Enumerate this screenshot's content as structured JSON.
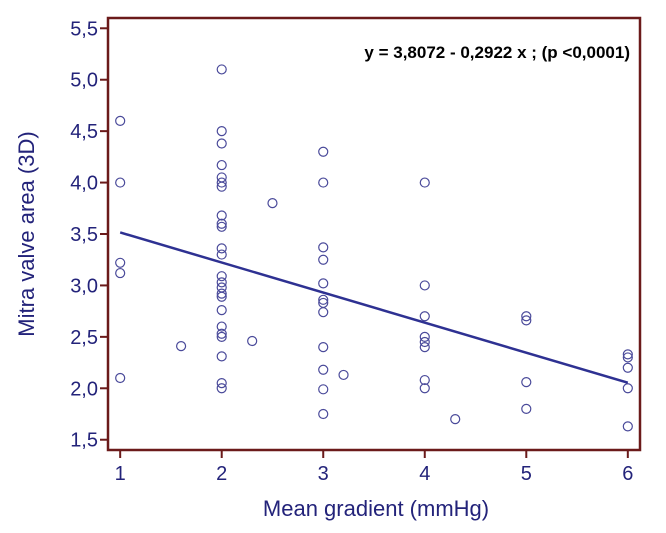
{
  "chart_data": {
    "type": "scatter",
    "xlabel": "Mean gradient (mmHg)",
    "ylabel": "Mitra valve area (3D)",
    "xlim": [
      0.88,
      6.12
    ],
    "ylim": [
      1.4,
      5.6
    ],
    "x_ticks": [
      1,
      2,
      3,
      4,
      5,
      6
    ],
    "x_tick_labels": [
      "1",
      "2",
      "3",
      "4",
      "5",
      "6"
    ],
    "y_ticks": [
      1.5,
      2.0,
      2.5,
      3.0,
      3.5,
      4.0,
      4.5,
      5.0,
      5.5
    ],
    "y_tick_labels": [
      "1,5",
      "2,0",
      "2,5",
      "3,0",
      "3,5",
      "4,0",
      "4,5",
      "5,0",
      "5,5"
    ],
    "annotation": "y = 3,8072 - 0,2922 x ; (p <0,0001)",
    "grid": false,
    "colors": {
      "frame": "#6b1a1a",
      "points": "#4a4a9a",
      "line": "#2e3192",
      "text": "#23237a"
    },
    "series": [
      {
        "points": [
          [
            1,
            4.6
          ],
          [
            1,
            4.0
          ],
          [
            1,
            3.22
          ],
          [
            1,
            3.12
          ],
          [
            1,
            2.1
          ],
          [
            1.6,
            2.41
          ],
          [
            2,
            5.1
          ],
          [
            2,
            4.5
          ],
          [
            2,
            4.38
          ],
          [
            2,
            4.17
          ],
          [
            2,
            4.05
          ],
          [
            2,
            4.0
          ],
          [
            2,
            3.96
          ],
          [
            2,
            3.68
          ],
          [
            2,
            3.6
          ],
          [
            2,
            3.57
          ],
          [
            2,
            3.36
          ],
          [
            2,
            3.3
          ],
          [
            2,
            3.09
          ],
          [
            2,
            3.03
          ],
          [
            2,
            2.98
          ],
          [
            2,
            2.92
          ],
          [
            2,
            2.89
          ],
          [
            2,
            2.76
          ],
          [
            2,
            2.6
          ],
          [
            2,
            2.53
          ],
          [
            2,
            2.5
          ],
          [
            2,
            2.31
          ],
          [
            2,
            2.05
          ],
          [
            2,
            2.0
          ],
          [
            2.3,
            2.46
          ],
          [
            2.5,
            3.8
          ],
          [
            3,
            4.3
          ],
          [
            3,
            4.0
          ],
          [
            3,
            3.37
          ],
          [
            3,
            3.25
          ],
          [
            3,
            3.02
          ],
          [
            3,
            2.86
          ],
          [
            3,
            2.83
          ],
          [
            3,
            2.74
          ],
          [
            3,
            2.4
          ],
          [
            3,
            2.18
          ],
          [
            3,
            1.99
          ],
          [
            3,
            1.75
          ],
          [
            3.2,
            2.13
          ],
          [
            4,
            4.0
          ],
          [
            4,
            3.0
          ],
          [
            4,
            2.7
          ],
          [
            4,
            2.5
          ],
          [
            4,
            2.45
          ],
          [
            4,
            2.4
          ],
          [
            4,
            2.08
          ],
          [
            4,
            2.0
          ],
          [
            4.3,
            1.7
          ],
          [
            5,
            2.7
          ],
          [
            5,
            2.66
          ],
          [
            5,
            2.06
          ],
          [
            5,
            1.8
          ],
          [
            6,
            2.33
          ],
          [
            6,
            2.3
          ],
          [
            6,
            2.2
          ],
          [
            6,
            2.0
          ],
          [
            6,
            1.63
          ]
        ]
      }
    ],
    "regression": {
      "intercept": 3.8072,
      "slope": -0.2922,
      "x_range": [
        1,
        6
      ]
    }
  }
}
